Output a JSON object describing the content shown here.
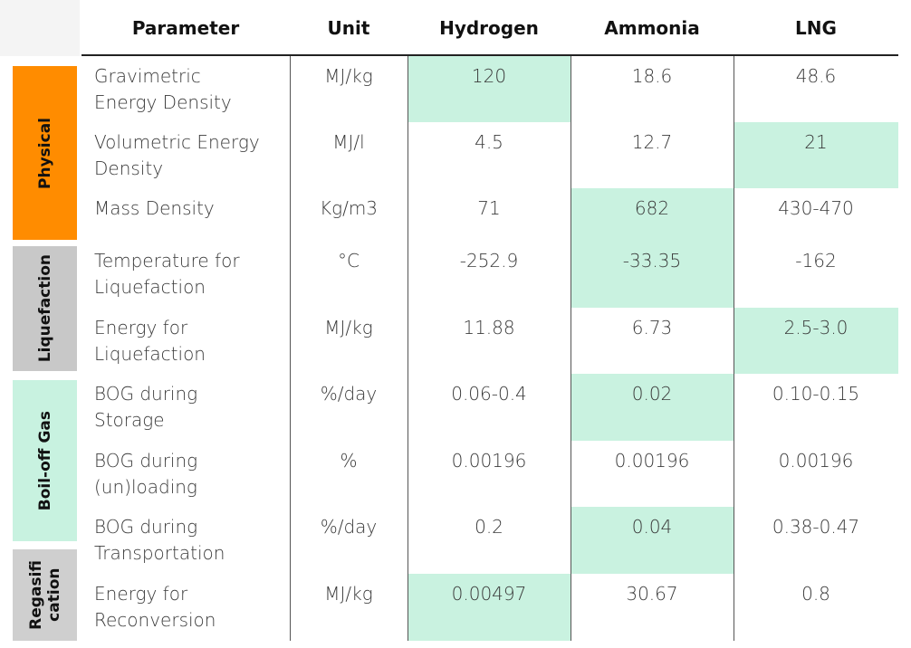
{
  "table": {
    "header": [
      "Parameter",
      "Unit",
      "Hydrogen",
      "Ammonia",
      "LNG"
    ],
    "groups": [
      "Physical",
      "Liquefaction",
      "Boil-off Gas",
      "Regasifi\ncation"
    ],
    "rows": [
      [
        "Gravimetric\nEnergy Density",
        "MJ/kg",
        "120",
        "18.6",
        "48.6"
      ],
      [
        "Volumetric Energy\nDensity",
        "MJ/l",
        "4.5",
        "12.7",
        "21"
      ],
      [
        "Mass Density",
        "Kg/m3",
        "71",
        "682",
        "430-470"
      ],
      [
        "Temperature for\nLiquefaction",
        "°C",
        "-252.9",
        "-33.35",
        "-162"
      ],
      [
        "Energy for\nLiquefaction",
        "MJ/kg",
        "11.88",
        "6.73",
        "2.5-3.0"
      ],
      [
        "BOG during\nStorage",
        "%/day",
        "0.06-0.4",
        "0.02",
        "0.10-0.15"
      ],
      [
        "BOG during\n(un)loading",
        "%",
        "0.00196",
        "0.00196",
        "0.00196"
      ],
      [
        "BOG during\nTransportation",
        "%/day",
        "0.2",
        "0.04",
        "0.38-0.47"
      ],
      [
        "Energy for\nReconversion",
        "MJ/kg",
        "0.00497",
        "30.67",
        "0.8"
      ]
    ]
  }
}
